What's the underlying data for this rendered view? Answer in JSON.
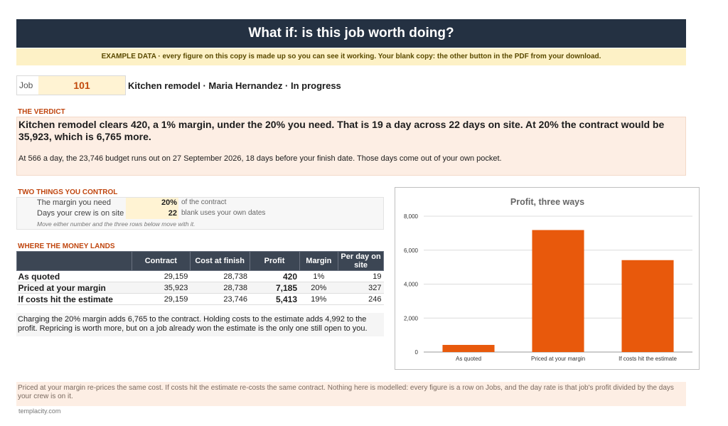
{
  "title": "What if: is this job worth doing?",
  "banner": "EXAMPLE DATA  ·  every figure on this copy is made up so you can see it working. Your blank copy: the other button in the PDF from your download.",
  "job": {
    "label": "Job",
    "number": "101",
    "description": "Kitchen remodel  ·  Maria Hernandez  ·  In progress"
  },
  "verdict": {
    "heading": "THE VERDICT",
    "main": "Kitchen remodel clears 420, a 1% margin, under the 20% you need. That is 19 a day across 22 days on site. At 20% the contract would be 35,923, which is 6,765 more.",
    "sub": "At 566 a day, the 23,746 budget runs out on 27 September 2026, 18 days before your finish date. Those days come out of your own pocket."
  },
  "controls": {
    "heading": "TWO THINGS YOU CONTROL",
    "margin": {
      "label": "The margin you need",
      "value": "20%",
      "unit": "of the contract"
    },
    "days": {
      "label": "Days your crew is on site",
      "value": "22",
      "unit": "blank uses your own dates"
    },
    "note": "Move either number and the three rows below move with it."
  },
  "money": {
    "heading": "WHERE THE MONEY LANDS",
    "columns": [
      "",
      "Contract",
      "Cost at finish",
      "Profit",
      "Margin",
      "Per day on site"
    ],
    "rows": [
      {
        "label": "As quoted",
        "contract": "29,159",
        "cost": "28,738",
        "profit": "420",
        "margin": "1%",
        "per_day": "19"
      },
      {
        "label": "Priced at your margin",
        "contract": "35,923",
        "cost": "28,738",
        "profit": "7,185",
        "margin": "20%",
        "per_day": "327"
      },
      {
        "label": "If costs hit the estimate",
        "contract": "29,159",
        "cost": "23,746",
        "profit": "5,413",
        "margin": "19%",
        "per_day": "246"
      }
    ],
    "note": "Charging the 20% margin adds 6,765 to the contract. Holding costs to the estimate adds 4,992 to the profit. Repricing is worth more, but on a job already won the estimate is the only one still open to you."
  },
  "chart_data": {
    "type": "bar",
    "title": "Profit, three ways",
    "categories": [
      "As quoted",
      "Priced at your margin",
      "If costs hit the estimate"
    ],
    "values": [
      420,
      7185,
      5413
    ],
    "ylim": [
      0,
      8000
    ],
    "yticks": [
      "0",
      "2,000",
      "4,000",
      "6,000",
      "8,000"
    ],
    "ytick_values": [
      0,
      2000,
      4000,
      6000,
      8000
    ],
    "xlabel": "",
    "ylabel": "",
    "grid": true,
    "color": "#e8590c"
  },
  "footer": "Priced at your margin re-prices the same cost. If costs hit the estimate re-costs the same contract. Nothing here is modelled: every figure is a row on Jobs, and the day rate is that job's profit divided by the days your crew is on it.",
  "site": "templacity.com"
}
